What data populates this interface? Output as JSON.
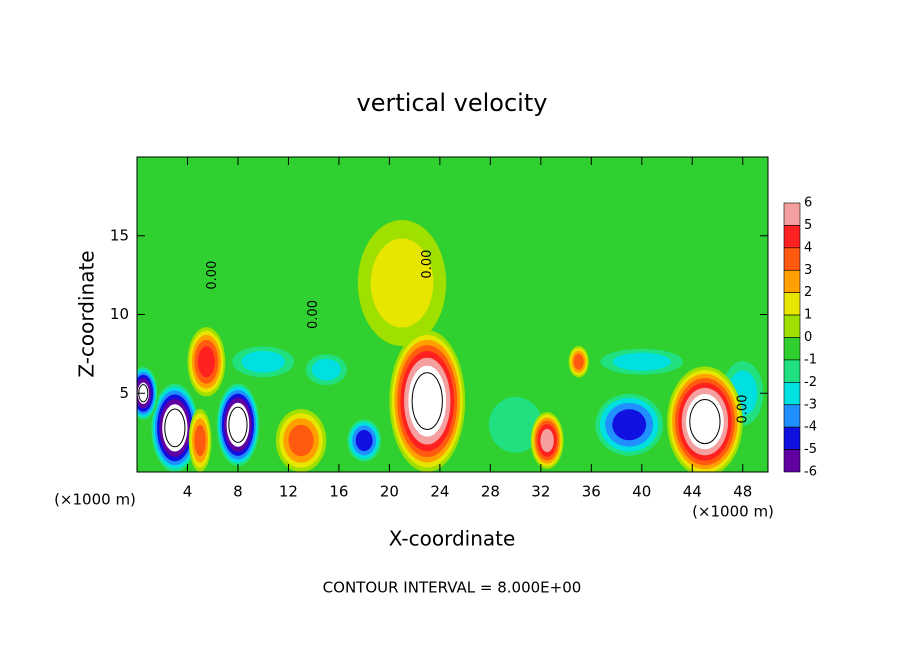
{
  "chart_data": {
    "type": "contour",
    "title": "vertical velocity",
    "xlabel": "X-coordinate",
    "ylabel": "Z-coordinate",
    "x_unit": "(×1000 m)",
    "footer": "CONTOUR INTERVAL = 8.000E+00",
    "xlim": [
      0,
      50
    ],
    "ylim": [
      0,
      20
    ],
    "xticks": [
      4,
      8,
      12,
      16,
      20,
      24,
      28,
      32,
      36,
      40,
      44,
      48
    ],
    "yticks": [
      5,
      10,
      15
    ],
    "background_color": "#30d030",
    "overflow_color": "#ffffff",
    "colorbar": {
      "ticks": [
        6,
        5,
        4,
        3,
        2,
        1,
        0,
        -1,
        -2,
        -3,
        -4,
        -5,
        -6
      ],
      "colors": [
        "#f4a0a0",
        "#ff2020",
        "#ff5a10",
        "#ffa000",
        "#e6e600",
        "#a0e000",
        "#30d030",
        "#20e080",
        "#00e0e0",
        "#2090ff",
        "#1010e0",
        "#6000a0"
      ]
    },
    "features": [
      {
        "x": 21,
        "z": 12,
        "rx": 3.5,
        "rz": 4,
        "value": 2
      },
      {
        "x": 10,
        "z": 7,
        "rx": 3,
        "rz": 1.2,
        "value": -3
      },
      {
        "x": 15,
        "z": 6.5,
        "rx": 2,
        "rz": 1.2,
        "value": -3
      },
      {
        "x": 30,
        "z": 3,
        "rx": 3,
        "rz": 2.5,
        "value": -2
      },
      {
        "x": 48,
        "z": 5,
        "rx": 2,
        "rz": 2.5,
        "value": -3
      },
      {
        "x": 39,
        "z": 3,
        "rx": 3,
        "rz": 2.2,
        "value": -5
      },
      {
        "x": 40,
        "z": 7,
        "rx": 4,
        "rz": 1,
        "value": -3
      },
      {
        "x": 23,
        "z": 4.5,
        "rx": 3,
        "rz": 4.5,
        "value": 8
      },
      {
        "x": 45,
        "z": 3.2,
        "rx": 3,
        "rz": 3.5,
        "value": 8
      },
      {
        "x": 3,
        "z": 2.8,
        "rx": 2,
        "rz": 3,
        "value": -8
      },
      {
        "x": 8,
        "z": 3,
        "rx": 1.8,
        "rz": 2.8,
        "value": -8
      },
      {
        "x": 0.5,
        "z": 5,
        "rx": 1.2,
        "rz": 1.8,
        "value": -7
      },
      {
        "x": 5.5,
        "z": 7,
        "rx": 1.5,
        "rz": 2.2,
        "value": 5
      },
      {
        "x": 5,
        "z": 2,
        "rx": 0.9,
        "rz": 2,
        "value": 4
      },
      {
        "x": 13,
        "z": 2,
        "rx": 2,
        "rz": 2,
        "value": 4
      },
      {
        "x": 18,
        "z": 2,
        "rx": 1.5,
        "rz": 1.5,
        "value": -5
      },
      {
        "x": 32.5,
        "z": 2,
        "rx": 1.3,
        "rz": 1.8,
        "value": 6
      },
      {
        "x": 35,
        "z": 7,
        "rx": 0.8,
        "rz": 1,
        "value": 4
      }
    ],
    "contour_labels": [
      {
        "text": "0.00",
        "x": 6,
        "z": 12.5
      },
      {
        "text": "0.00",
        "x": 14,
        "z": 10
      },
      {
        "text": "0.00",
        "x": 23,
        "z": 13.2
      },
      {
        "text": "0.00",
        "x": 48,
        "z": 4
      }
    ]
  }
}
